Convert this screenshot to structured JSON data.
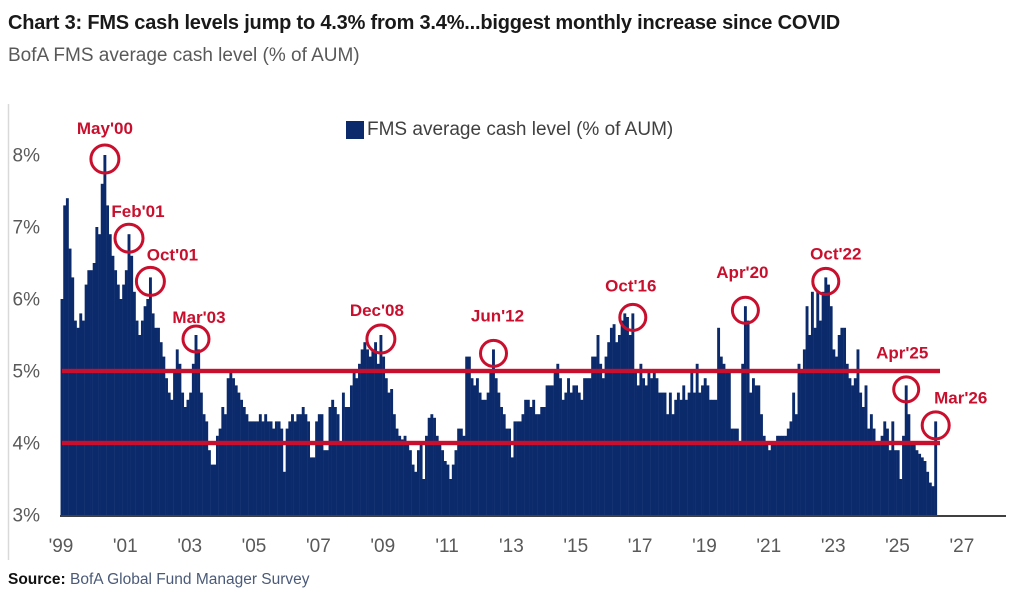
{
  "header": {
    "title": "Chart 3: FMS cash levels jump to 4.3% from 3.4%...biggest monthly increase since COVID",
    "subtitle": "BofA FMS average cash level (% of AUM)"
  },
  "legend": {
    "label": "FMS average cash level (% of AUM)"
  },
  "source": {
    "prefix": "Source:",
    "text": " BofA Global Fund Manager Survey"
  },
  "chart_data": {
    "type": "bar",
    "series_name": "FMS average cash level (% of AUM)",
    "frequency": "monthly",
    "start_month": "1999-01",
    "end_month": "2026-03",
    "ylabel": "Cash level (% of AUM)",
    "ylim": [
      3,
      8
    ],
    "y_ticks": [
      "3%",
      "4%",
      "5%",
      "6%",
      "7%",
      "8%"
    ],
    "x_ticks": [
      "'99",
      "'01",
      "'03",
      "'05",
      "'07",
      "'09",
      "'11",
      "'13",
      "'15",
      "'17",
      "'19",
      "'21",
      "'23",
      "'25",
      "'27"
    ],
    "grid": false,
    "legend_position": "top-center",
    "bar_color": "#0b2a6b",
    "accent_red": "#c8102e",
    "axis_text_color": "#595959",
    "reference_lines": [
      {
        "value": 5.0,
        "color": "#c8102e"
      },
      {
        "value": 4.0,
        "color": "#c8102e"
      }
    ],
    "values": [
      6.0,
      7.3,
      7.4,
      6.7,
      6.3,
      5.7,
      5.6,
      5.8,
      5.7,
      6.2,
      6.4,
      6.4,
      6.5,
      7.0,
      6.9,
      7.6,
      8.0,
      7.3,
      6.9,
      6.6,
      6.4,
      6.2,
      6.0,
      6.2,
      6.4,
      6.9,
      6.6,
      6.1,
      5.7,
      5.5,
      5.7,
      5.9,
      6.0,
      6.3,
      5.8,
      5.6,
      5.6,
      5.4,
      5.2,
      4.9,
      4.7,
      4.6,
      5.0,
      5.3,
      5.1,
      4.7,
      4.5,
      4.6,
      4.7,
      5.1,
      5.5,
      5.3,
      4.7,
      4.4,
      4.3,
      3.9,
      3.7,
      3.7,
      4.1,
      4.2,
      4.5,
      4.4,
      4.9,
      5.0,
      4.9,
      4.8,
      4.7,
      4.6,
      4.5,
      4.4,
      4.3,
      4.3,
      4.3,
      4.3,
      4.4,
      4.3,
      4.4,
      4.3,
      4.3,
      4.2,
      4.3,
      4.3,
      4.2,
      3.6,
      4.2,
      4.3,
      4.4,
      4.3,
      4.4,
      4.4,
      4.5,
      4.4,
      4.3,
      3.8,
      3.8,
      4.3,
      4.4,
      4.4,
      3.9,
      3.9,
      4.5,
      4.6,
      4.5,
      4.4,
      4.0,
      4.7,
      4.5,
      4.5,
      4.8,
      5.0,
      4.9,
      5.1,
      5.3,
      5.4,
      5.3,
      5.2,
      5.3,
      5.4,
      5.1,
      5.5,
      5.2,
      4.9,
      4.7,
      4.75,
      4.4,
      4.2,
      4.1,
      4.05,
      4.1,
      4.0,
      3.9,
      3.7,
      3.6,
      3.9,
      4.0,
      3.5,
      4.1,
      4.35,
      4.4,
      4.35,
      4.1,
      4.0,
      3.9,
      3.75,
      3.7,
      3.5,
      3.7,
      3.9,
      4.2,
      4.2,
      4.1,
      5.2,
      5.2,
      4.9,
      4.8,
      4.9,
      4.7,
      4.6,
      4.6,
      4.7,
      5.0,
      5.3,
      4.9,
      4.7,
      4.5,
      4.4,
      4.2,
      4.2,
      3.8,
      4.3,
      4.3,
      4.3,
      4.4,
      4.6,
      4.6,
      4.5,
      4.6,
      4.4,
      4.4,
      4.5,
      4.5,
      4.8,
      4.8,
      4.8,
      5.0,
      5.1,
      4.9,
      4.6,
      4.7,
      4.9,
      4.7,
      4.8,
      4.8,
      4.7,
      4.6,
      4.9,
      4.9,
      4.9,
      5.2,
      5.2,
      5.5,
      5.1,
      4.9,
      5.2,
      5.4,
      5.6,
      5.65,
      5.4,
      5.5,
      5.7,
      5.8,
      5.75,
      5.5,
      5.8,
      5.0,
      4.8,
      5.1,
      4.9,
      4.8,
      5.0,
      4.9,
      5.0,
      4.9,
      4.7,
      4.7,
      4.7,
      4.4,
      4.7,
      4.4,
      4.6,
      4.7,
      4.6,
      4.8,
      4.6,
      4.7,
      5.0,
      4.7,
      5.1,
      4.7,
      4.8,
      4.9,
      4.8,
      4.6,
      4.6,
      4.6,
      5.6,
      5.2,
      5.1,
      5.0,
      5.0,
      4.2,
      4.2,
      4.2,
      4.0,
      5.1,
      5.9,
      5.7,
      4.7,
      4.9,
      4.8,
      4.8,
      4.4,
      4.1,
      4.0,
      3.9,
      4.0,
      4.0,
      4.1,
      4.1,
      4.1,
      4.1,
      4.2,
      4.3,
      4.7,
      4.4,
      5.1,
      5.0,
      5.3,
      5.9,
      5.5,
      6.1,
      5.6,
      6.1,
      5.7,
      6.1,
      6.3,
      6.2,
      5.9,
      5.3,
      5.2,
      5.5,
      5.6,
      5.6,
      5.1,
      4.9,
      4.8,
      4.9,
      5.3,
      4.7,
      4.5,
      4.8,
      4.2,
      4.4,
      4.2,
      4.0,
      4.0,
      4.1,
      4.3,
      4.2,
      3.9,
      4.3,
      3.9,
      3.9,
      3.5,
      4.1,
      4.8,
      4.4,
      4.0,
      4.0,
      3.9,
      3.85,
      3.8,
      3.75,
      3.6,
      3.45,
      3.4,
      4.3
    ],
    "annotations": [
      {
        "label": "May'00",
        "month": "2000-05",
        "index": 16,
        "value": 8.0
      },
      {
        "label": "Feb'01",
        "month": "2001-02",
        "index": 25,
        "value": 6.9
      },
      {
        "label": "Oct'01",
        "month": "2001-10",
        "index": 33,
        "value": 6.3
      },
      {
        "label": "Mar'03",
        "month": "2003-03",
        "index": 50,
        "value": 5.5
      },
      {
        "label": "Dec'08",
        "month": "2008-12",
        "index": 119,
        "value": 5.5
      },
      {
        "label": "Jun'12",
        "month": "2012-06",
        "index": 161,
        "value": 5.3
      },
      {
        "label": "Oct'16",
        "month": "2016-10",
        "index": 213,
        "value": 5.8
      },
      {
        "label": "Apr'20",
        "month": "2020-04",
        "index": 255,
        "value": 5.9
      },
      {
        "label": "Oct'22",
        "month": "2022-10",
        "index": 285,
        "value": 6.3
      },
      {
        "label": "Apr'25",
        "month": "2025-04",
        "index": 315,
        "value": 4.8
      },
      {
        "label": "Mar'26",
        "month": "2026-03",
        "index": 326,
        "value": 4.3
      }
    ]
  }
}
